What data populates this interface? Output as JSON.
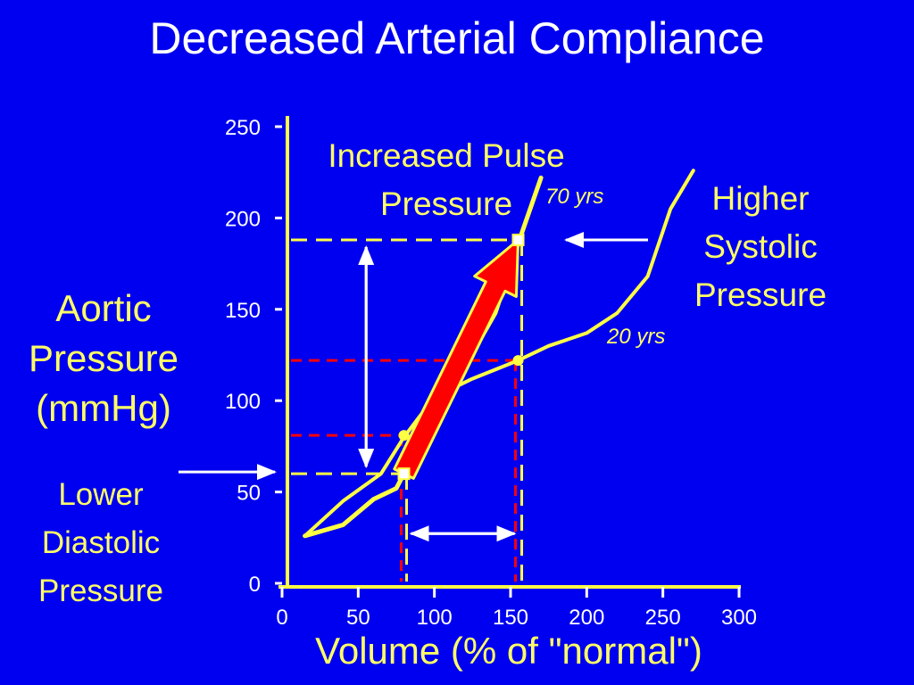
{
  "slide": {
    "title": "Decreased Arterial Compliance",
    "y_label_lines": [
      "Aortic",
      "Pressure",
      "(mmHg)"
    ],
    "lower_label_lines": [
      "Lower",
      "Diastolic",
      "Pressure"
    ],
    "higher_label_lines": [
      "Higher",
      "Systolic",
      "Pressure"
    ],
    "increased_label_lines": [
      "Increased Pulse",
      "Pressure"
    ]
  },
  "colors": {
    "background": "#0000f0",
    "curve": "#ffff44",
    "arrow": "#ff0000",
    "red_guides": "#ff0000",
    "yellow_guides": "#ffff44",
    "text": "#ffffff"
  },
  "chart_data": {
    "type": "line",
    "title": "",
    "xlabel": "Volume (% of \"normal\")",
    "ylabel": "",
    "xlim": [
      0,
      300
    ],
    "ylim": [
      0,
      250
    ],
    "x_ticks": [
      0,
      50,
      100,
      150,
      200,
      250,
      300
    ],
    "x_tick_labels": [
      "0",
      "50",
      "100",
      "150",
      "200",
      "250",
      "300"
    ],
    "y_ticks": [
      0,
      50,
      100,
      150,
      200,
      250
    ],
    "y_tick_labels": [
      "0",
      "50",
      "100",
      "150",
      "200",
      "250"
    ],
    "grid": false,
    "series": [
      {
        "name": "20 yrs",
        "x": [
          15,
          40,
          65,
          80,
          100,
          125,
          155,
          175,
          200,
          220,
          240,
          255,
          270
        ],
        "y": [
          26,
          45,
          60,
          80,
          102,
          112,
          122,
          130,
          137,
          148,
          168,
          205,
          226
        ]
      },
      {
        "name": "70 yrs",
        "x": [
          15,
          40,
          60,
          75,
          80,
          110,
          140,
          155,
          170
        ],
        "y": [
          26,
          32,
          46,
          52,
          60,
          104,
          148,
          186,
          222
        ]
      }
    ],
    "points": [
      {
        "series": "70 yrs",
        "x": 80,
        "y": 60
      },
      {
        "series": "70 yrs",
        "x": 155,
        "y": 188
      },
      {
        "series": "20 yrs",
        "x": 80,
        "y": 81
      },
      {
        "series": "20 yrs",
        "x": 155,
        "y": 122
      }
    ],
    "annotations": {
      "pressure_arrow": {
        "from": {
          "x": 80,
          "y": 60
        },
        "to": {
          "x": 155,
          "y": 188
        }
      },
      "volume_range_arrow": {
        "x_start": 80,
        "x_end": 155,
        "y": 37
      },
      "pulse_pressure_arrow": {
        "x": 30,
        "y_start": 60,
        "y_end": 188
      },
      "systolic_pointer_y": 188,
      "diastolic_pointer_y": 60,
      "yellow_guide_ys": [
        188,
        60
      ],
      "red_guide_ys": [
        122,
        81
      ],
      "guide_xs": [
        80,
        155
      ]
    }
  }
}
